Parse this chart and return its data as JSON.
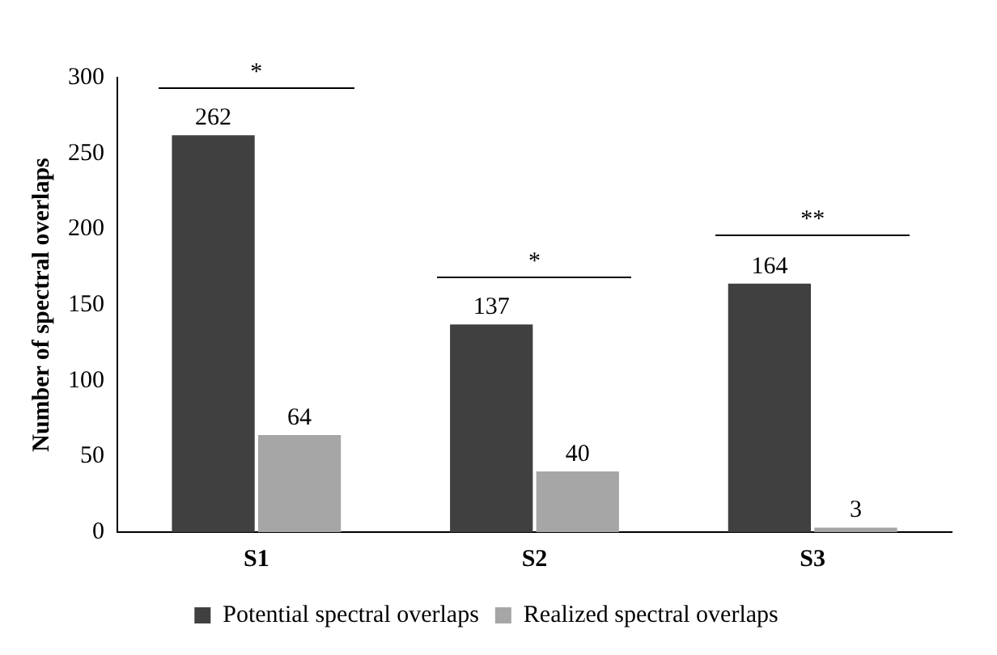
{
  "chart_data": {
    "type": "bar",
    "ylabel": "Number of spectral overlaps",
    "categories": [
      "S1",
      "S2",
      "S3"
    ],
    "series": [
      {
        "name": "Potential spectral overlaps",
        "color": "#404040",
        "values": [
          262,
          137,
          164
        ]
      },
      {
        "name": "Realized spectral overlaps",
        "color": "#a6a6a6",
        "values": [
          64,
          40,
          3
        ]
      }
    ],
    "ylim": [
      0,
      300
    ],
    "yticks": [
      0,
      50,
      100,
      150,
      200,
      250,
      300
    ],
    "grid": false,
    "legend": "bottom",
    "data_labels": true,
    "annotations": [
      "*",
      "*",
      "**"
    ]
  }
}
